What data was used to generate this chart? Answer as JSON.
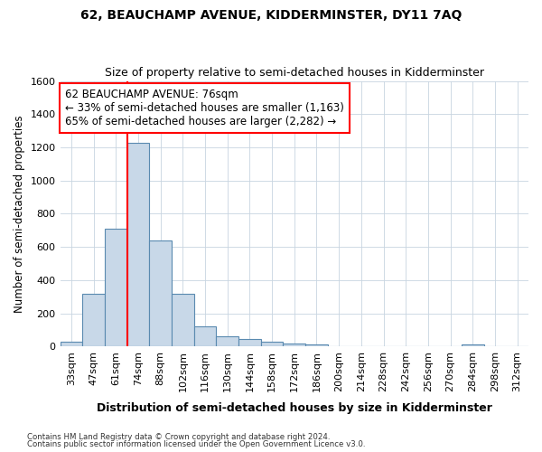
{
  "title1": "62, BEAUCHAMP AVENUE, KIDDERMINSTER, DY11 7AQ",
  "title2": "Size of property relative to semi-detached houses in Kidderminster",
  "xlabel": "Distribution of semi-detached houses by size in Kidderminster",
  "ylabel": "Number of semi-detached properties",
  "categories": [
    "33sqm",
    "47sqm",
    "61sqm",
    "74sqm",
    "88sqm",
    "102sqm",
    "116sqm",
    "130sqm",
    "144sqm",
    "158sqm",
    "172sqm",
    "186sqm",
    "200sqm",
    "214sqm",
    "228sqm",
    "242sqm",
    "256sqm",
    "270sqm",
    "284sqm",
    "298sqm",
    "312sqm"
  ],
  "values": [
    30,
    320,
    710,
    1230,
    640,
    320,
    120,
    60,
    45,
    30,
    20,
    15,
    0,
    0,
    0,
    0,
    0,
    0,
    15,
    0,
    0
  ],
  "bar_color": "#c8d8e8",
  "bar_edge_color": "#5a8ab0",
  "highlight_line_index": 3,
  "annotation_line1": "62 BEAUCHAMP AVENUE: 76sqm",
  "annotation_line2": "← 33% of semi-detached houses are smaller (1,163)",
  "annotation_line3": "65% of semi-detached houses are larger (2,282) →",
  "ylim": [
    0,
    1600
  ],
  "yticks": [
    0,
    200,
    400,
    600,
    800,
    1000,
    1200,
    1400,
    1600
  ],
  "footer1": "Contains HM Land Registry data © Crown copyright and database right 2024.",
  "footer2": "Contains public sector information licensed under the Open Government Licence v3.0.",
  "bg_color": "#ffffff",
  "plot_bg_color": "#ffffff",
  "grid_color": "#c8d4e0"
}
